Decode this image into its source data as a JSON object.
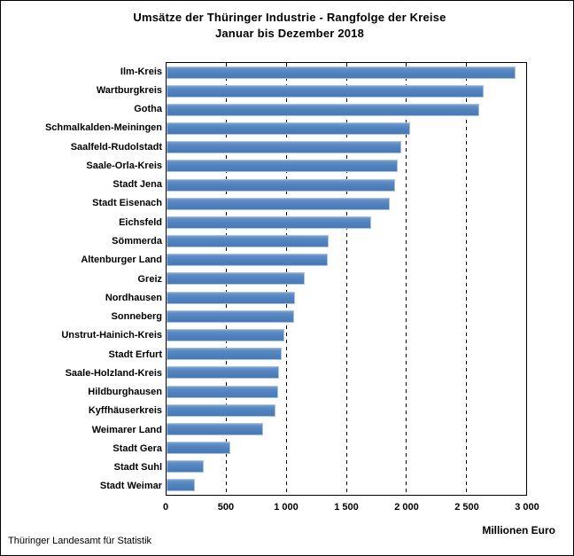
{
  "figure": {
    "title_line1": "Umsätze der Thüringer Industrie - Rangfolge der Kreise",
    "title_line2": "Januar bis Dezember 2018",
    "axis_unit_label": "Millionen Euro",
    "source": "Thüringer Landesamt für Statistik"
  },
  "chart_data": {
    "type": "bar",
    "orientation": "horizontal",
    "title": "Umsätze der Thüringer Industrie - Rangfolge der Kreise",
    "subtitle": "Januar bis Dezember 2018",
    "xlabel": "Millionen Euro",
    "ylabel": "",
    "xlim": [
      0,
      3000
    ],
    "x_tick_values": [
      0,
      500,
      1000,
      1500,
      2000,
      2500,
      3000
    ],
    "x_tick_labels": [
      "0",
      "500",
      "1 000",
      "1 500",
      "2 000",
      "2 500",
      "3 000"
    ],
    "grid": "vertical dashed gridlines at each 500",
    "legend": "none",
    "bar_color": "#4F81BD",
    "bar_border_color": "#A9C2E0",
    "categories": [
      "Ilm-Kreis",
      "Wartburgkreis",
      "Gotha",
      "Schmalkalden-Meiningen",
      "Saalfeld-Rudolstadt",
      "Saale-Orla-Kreis",
      "Stadt Jena",
      "Stadt Eisenach",
      "Eichsfeld",
      "Sömmerda",
      "Altenburger Land",
      "Greiz",
      "Nordhausen",
      "Sonneberg",
      "Unstrut-Hainich-Kreis",
      "Stadt Erfurt",
      "Saale-Holzland-Kreis",
      "Hildburghausen",
      "Kyffhäuserkreis",
      "Weimarer Land",
      "Stadt Gera",
      "Stadt Suhl",
      "Stadt Weimar"
    ],
    "values": [
      2910,
      2645,
      2610,
      2035,
      1960,
      1925,
      1905,
      1860,
      1710,
      1355,
      1345,
      1150,
      1070,
      1065,
      980,
      960,
      935,
      930,
      910,
      805,
      530,
      310,
      240
    ],
    "unit": "Millionen Euro",
    "source": "Thüringer Landesamt für Statistik"
  }
}
